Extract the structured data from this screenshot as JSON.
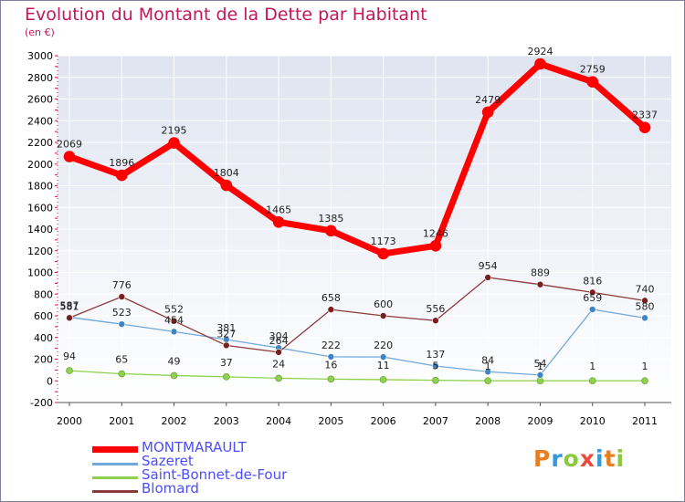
{
  "title": "Evolution du Montant de la Dette par Habitant",
  "subtitle": "(en €)",
  "logo": {
    "text": "Proxiti",
    "letters": [
      {
        "ch": "P",
        "color": "#e67e22"
      },
      {
        "ch": "r",
        "color": "#3498db"
      },
      {
        "ch": "o",
        "color": "#8dc63f"
      },
      {
        "ch": "x",
        "color": "#e74c3c"
      },
      {
        "ch": "i",
        "color": "#3498db"
      },
      {
        "ch": "t",
        "color": "#e67e22"
      },
      {
        "ch": "i",
        "color": "#8dc63f"
      }
    ]
  },
  "chart_data": {
    "type": "line",
    "title": "Evolution du Montant de la Dette par Habitant",
    "subtitle": "(en €)",
    "xlabel": "",
    "ylabel": "",
    "ylim": [
      -200,
      3000
    ],
    "yticks": [
      -200,
      0,
      200,
      400,
      600,
      800,
      1000,
      1200,
      1400,
      1600,
      1800,
      2000,
      2200,
      2400,
      2600,
      2800,
      3000
    ],
    "grid": true,
    "legend_position": "bottom-left",
    "categories": [
      "2000",
      "2001",
      "2002",
      "2003",
      "2004",
      "2005",
      "2006",
      "2007",
      "2008",
      "2009",
      "2010",
      "2011"
    ],
    "series": [
      {
        "name": "MONTMARAULT",
        "color": "#ff0000",
        "values": [
          2069,
          1896,
          2195,
          1804,
          1465,
          1385,
          1173,
          1246,
          2479,
          2924,
          2759,
          2337
        ]
      },
      {
        "name": "Sazeret",
        "color": "#6fa8dc",
        "values": [
          587,
          523,
          454,
          381,
          304,
          222,
          220,
          137,
          84,
          54,
          659,
          580
        ]
      },
      {
        "name": "Saint-Bonnet-de-Four",
        "color": "#8fd14f",
        "values": [
          94,
          65,
          49,
          37,
          24,
          16,
          11,
          5,
          1,
          1,
          1,
          1
        ]
      },
      {
        "name": "Blomard",
        "color": "#8b3a3a",
        "values": [
          581,
          776,
          552,
          327,
          264,
          658,
          600,
          556,
          954,
          889,
          816,
          740
        ]
      }
    ]
  }
}
